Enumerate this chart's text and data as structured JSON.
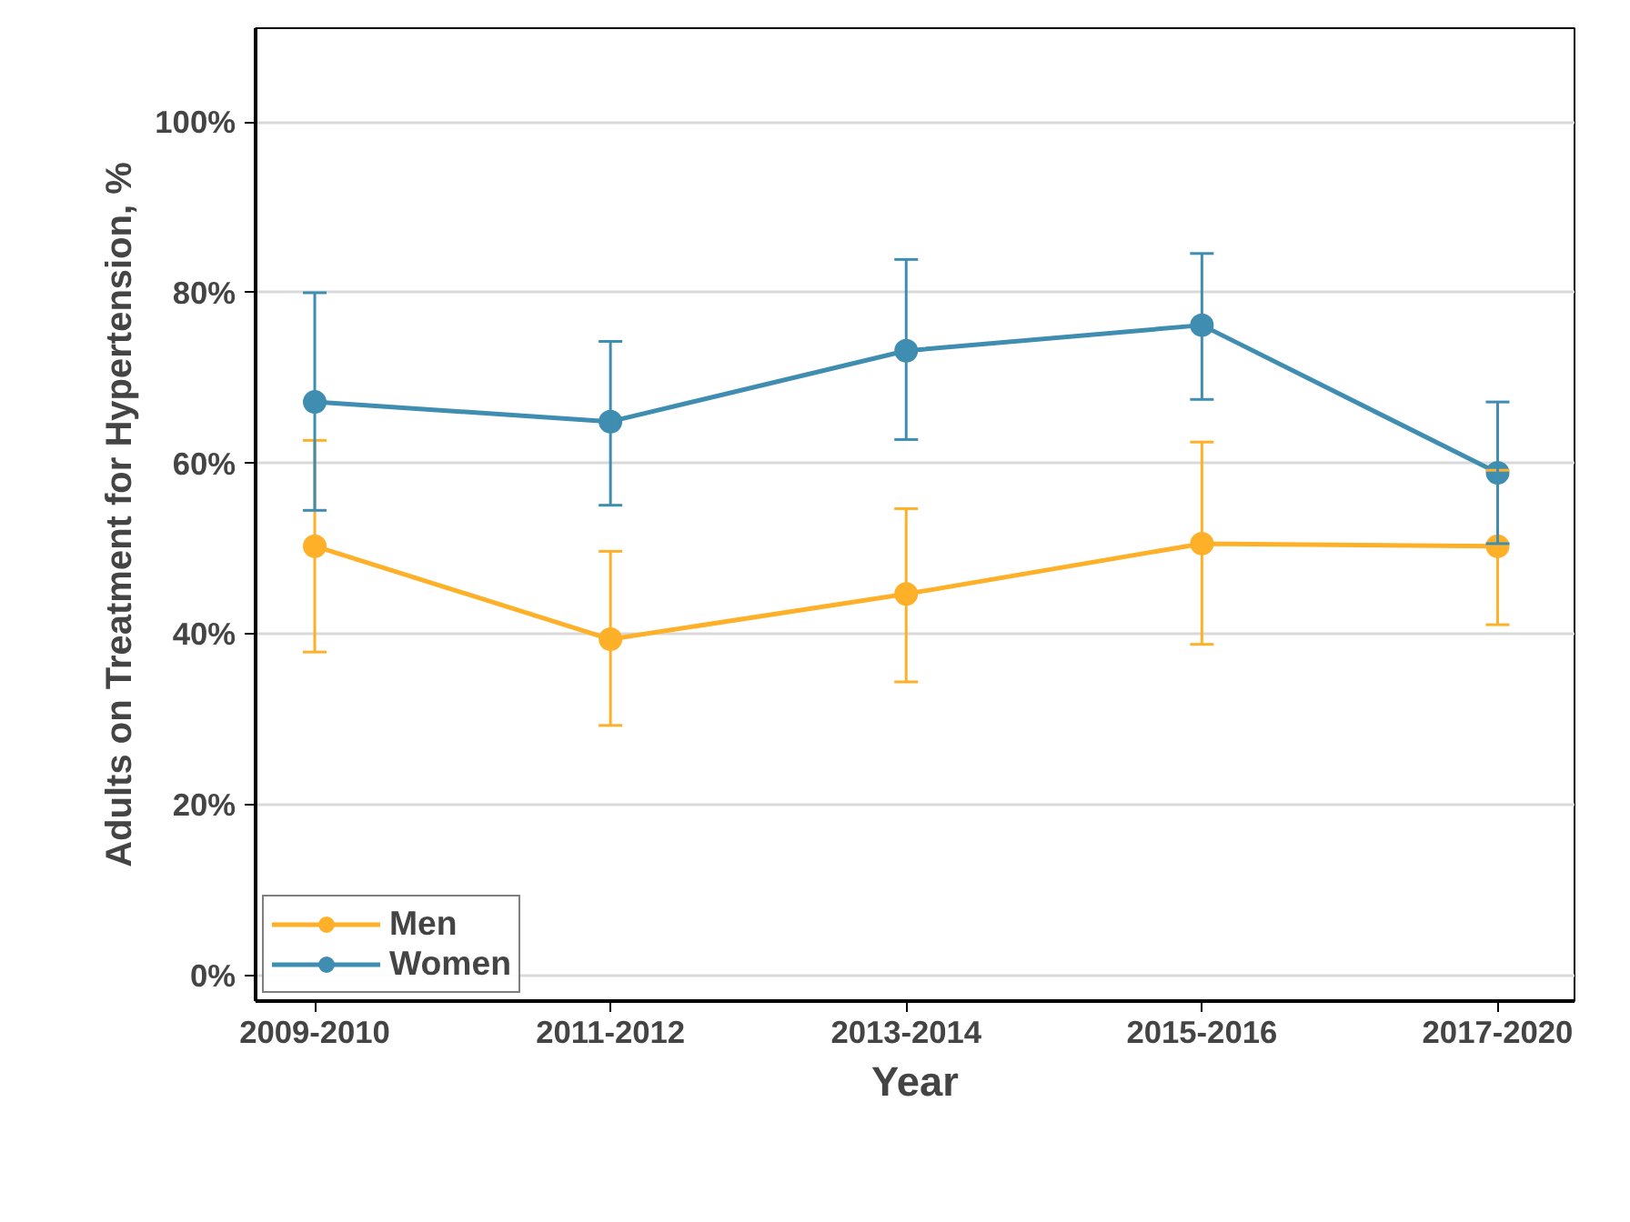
{
  "chart_data": {
    "type": "line",
    "xlabel": "Year",
    "ylabel": "Adults on Treatment for Hypertension, %",
    "categories": [
      "2009-2010",
      "2011-2012",
      "2013-2014",
      "2015-2016",
      "2017-2020"
    ],
    "series": [
      {
        "name": "Men",
        "color": "#ffb029",
        "values": [
          50.3,
          39.4,
          44.7,
          50.6,
          50.3
        ],
        "errors": [
          [
            37.9,
            62.7
          ],
          [
            29.3,
            49.7
          ],
          [
            34.4,
            54.7
          ],
          [
            38.8,
            62.5
          ],
          [
            41.1,
            59.2
          ]
        ]
      },
      {
        "name": "Women",
        "color": "#3f8db0",
        "values": [
          67.2,
          64.9,
          73.2,
          76.2,
          58.9
        ],
        "errors": [
          [
            54.5,
            80
          ],
          [
            55.1,
            74.3
          ],
          [
            62.8,
            83.9
          ],
          [
            67.5,
            84.6
          ],
          [
            50.6,
            67.2
          ]
        ]
      }
    ],
    "ylim": [
      -3,
      111
    ],
    "yticks": [
      {
        "value": 0,
        "label": "0%"
      },
      {
        "value": 20,
        "label": "20%"
      },
      {
        "value": 40,
        "label": "40%"
      },
      {
        "value": 60,
        "label": "60%"
      },
      {
        "value": 80,
        "label": "80%"
      },
      {
        "value": 100,
        "label": "100%"
      }
    ],
    "grid": "y",
    "legend": "bottom left",
    "marker": "circle",
    "line_style": "solid"
  }
}
